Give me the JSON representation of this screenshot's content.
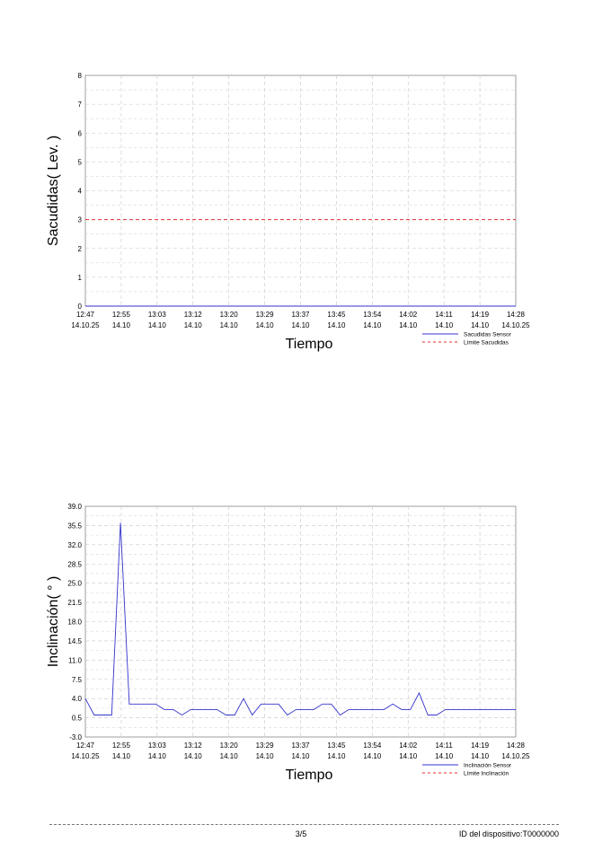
{
  "chart_data": [
    {
      "type": "line",
      "ylabel": "Sacudidas( Lev. )",
      "xlabel": "Tiempo",
      "ylim": [
        0,
        8
      ],
      "yticks": [
        "0",
        "1",
        "2",
        "3",
        "4",
        "5",
        "6",
        "7",
        "8"
      ],
      "x_ticks": [
        {
          "time": "12:47",
          "date": "14.10.25"
        },
        {
          "time": "12:55",
          "date": "14.10"
        },
        {
          "time": "13:03",
          "date": "14.10"
        },
        {
          "time": "13:12",
          "date": "14.10"
        },
        {
          "time": "13:20",
          "date": "14.10"
        },
        {
          "time": "13:29",
          "date": "14.10"
        },
        {
          "time": "13:37",
          "date": "14.10"
        },
        {
          "time": "13:45",
          "date": "14.10"
        },
        {
          "time": "13:54",
          "date": "14.10"
        },
        {
          "time": "14:02",
          "date": "14.10"
        },
        {
          "time": "14:11",
          "date": "14.10"
        },
        {
          "time": "14:19",
          "date": "14.10"
        },
        {
          "time": "14:28",
          "date": "14.10.25"
        }
      ],
      "grid": true,
      "legend_position": "bottom-right",
      "series": [
        {
          "name": "Sacudidas Sensor",
          "color": "#3333cc",
          "style": "solid",
          "values": [
            0,
            0,
            0,
            0,
            0,
            0,
            0,
            0,
            0,
            0,
            0,
            0,
            0,
            0,
            0,
            0,
            0,
            0,
            0,
            0,
            0,
            0,
            0,
            0,
            0,
            0,
            0,
            0,
            0,
            0,
            0,
            0,
            0,
            0,
            0,
            0,
            0,
            0,
            0,
            0,
            0,
            0,
            0,
            0,
            0,
            0,
            0,
            0
          ]
        },
        {
          "name": "Límite Sacudidas",
          "color": "#e03030",
          "style": "dashed",
          "value": 3
        }
      ]
    },
    {
      "type": "line",
      "ylabel": "Inclinación( ° )",
      "xlabel": "Tiempo",
      "ylim": [
        -3.0,
        39.0
      ],
      "yticks": [
        "-3.0",
        "0.5",
        "4.0",
        "7.5",
        "11.0",
        "14.5",
        "18.0",
        "21.5",
        "25.0",
        "28.5",
        "32.0",
        "35.5",
        "39.0"
      ],
      "x_ticks": [
        {
          "time": "12:47",
          "date": "14.10.25"
        },
        {
          "time": "12:55",
          "date": "14.10"
        },
        {
          "time": "13:03",
          "date": "14.10"
        },
        {
          "time": "13:12",
          "date": "14.10"
        },
        {
          "time": "13:20",
          "date": "14.10"
        },
        {
          "time": "13:29",
          "date": "14.10"
        },
        {
          "time": "13:37",
          "date": "14.10"
        },
        {
          "time": "13:45",
          "date": "14.10"
        },
        {
          "time": "13:54",
          "date": "14.10"
        },
        {
          "time": "14:02",
          "date": "14.10"
        },
        {
          "time": "14:11",
          "date": "14.10"
        },
        {
          "time": "14:19",
          "date": "14.10"
        },
        {
          "time": "14:28",
          "date": "14.10.25"
        }
      ],
      "grid": true,
      "legend_position": "bottom-right",
      "series": [
        {
          "name": "Inclinación Sensor",
          "color": "#3333cc",
          "style": "solid",
          "values": [
            4.0,
            1.0,
            1.0,
            1.0,
            36.0,
            3.0,
            3.0,
            3.0,
            3.0,
            2.0,
            2.0,
            1.0,
            2.0,
            2.0,
            2.0,
            2.0,
            1.0,
            1.0,
            4.0,
            1.0,
            3.0,
            3.0,
            3.0,
            1.0,
            2.0,
            2.0,
            2.0,
            3.0,
            3.0,
            1.0,
            2.0,
            2.0,
            2.0,
            2.0,
            2.0,
            3.0,
            2.0,
            2.0,
            5.0,
            1.0,
            1.0,
            2.0,
            2.0,
            2.0,
            2.0,
            2.0,
            2.0,
            2.0,
            2.0,
            2.0
          ]
        },
        {
          "name": "Límite Inclinación",
          "color": "#e03030",
          "style": "dashed"
        }
      ]
    }
  ],
  "footer": {
    "page": "3/5",
    "device_id": "ID del dispositivo:T0000000"
  }
}
